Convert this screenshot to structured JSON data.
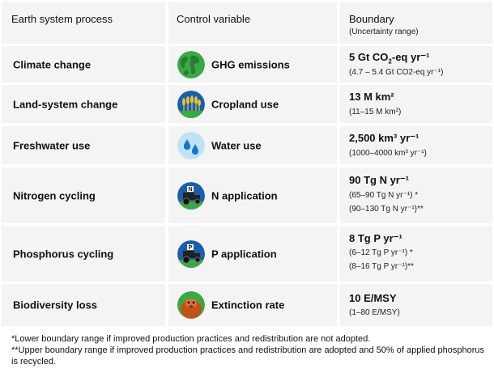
{
  "header": {
    "col_process": "Earth system process",
    "col_control": "Control variable",
    "col_boundary": "Boundary",
    "col_boundary_sub": "(Uncertainty range)"
  },
  "rows": [
    {
      "process": "Climate change",
      "control": "GHG emissions",
      "icon": "globe-icon",
      "boundary_main_pre": "5 Gt CO",
      "boundary_main_sub": "2",
      "boundary_main_post": "-eq yr⁻¹",
      "boundary_sub": [
        "(4.7 – 5.4 Gt CO2-eq yr⁻¹)"
      ]
    },
    {
      "process": "Land-system change",
      "control": "Cropland use",
      "icon": "wheat-icon",
      "boundary_main": "13 M km²",
      "boundary_sub": [
        "(11–15 M km²)"
      ]
    },
    {
      "process": "Freshwater use",
      "control": "Water use",
      "icon": "water-drops-icon",
      "boundary_main": "2,500 km³ yr⁻¹",
      "boundary_sub": [
        "(1000–4000 km³ yr⁻¹)"
      ]
    },
    {
      "process": "Nitrogen cycling",
      "control": "N application",
      "icon": "tractor-n-icon",
      "icon_letter": "N",
      "boundary_main": "90 Tg N yr⁻¹",
      "boundary_sub": [
        "(65–90 Tg N yr⁻¹) *",
        "(90–130 Tg N yr⁻¹)**"
      ]
    },
    {
      "process": "Phosphorus cycling",
      "control": "P application",
      "icon": "tractor-p-icon",
      "icon_letter": "P",
      "boundary_main": "8 Tg P yr⁻¹",
      "boundary_sub": [
        "(6–12 Tg P yr⁻¹) *",
        "(8–16 Tg P yr⁻¹)**"
      ]
    },
    {
      "process": "Biodiversity loss",
      "control": "Extinction rate",
      "icon": "orangutan-icon",
      "boundary_main": "10 E/MSY",
      "boundary_sub": [
        "(1–80 E/MSY)"
      ]
    }
  ],
  "footnotes": [
    "*Lower boundary range if improved production practices and redistribution are not adopted.",
    "**Upper boundary range if improved production practices and redistribution are adopted and 50% of applied phosphorus is recycled."
  ],
  "colors": {
    "cell_bg": "#f4f4f4",
    "green": "#3aa845",
    "blue": "#1c5fa8",
    "light_blue": "#bfe3f3",
    "orange": "#c2521b"
  }
}
